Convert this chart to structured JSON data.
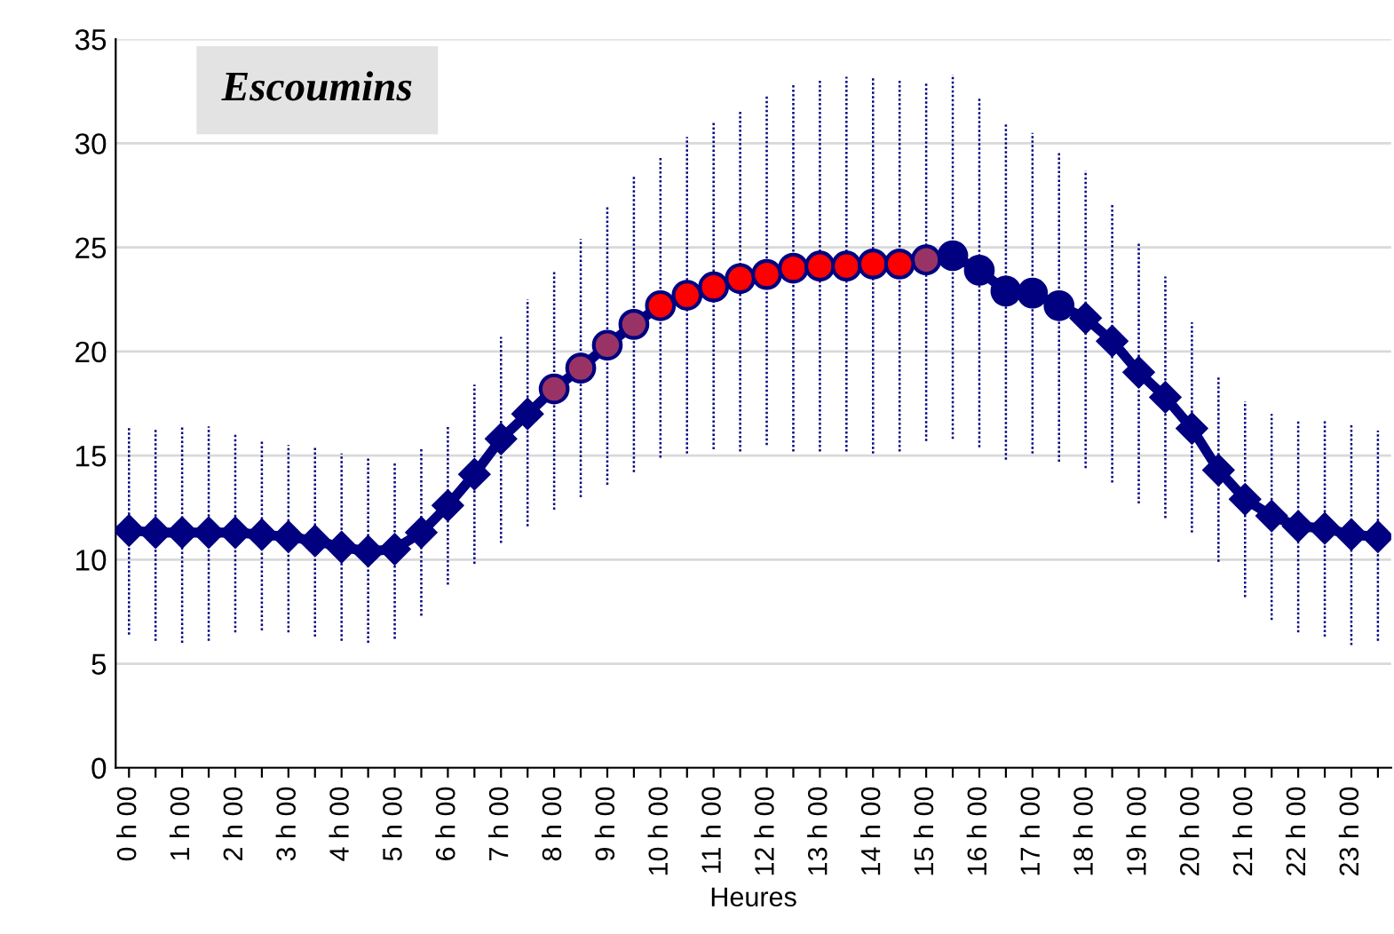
{
  "chart_data": {
    "type": "line",
    "title": "Escoumins",
    "xlabel": "Heures",
    "categories": [
      "0 h 00",
      null,
      "1 h 00",
      null,
      "2 h 00",
      null,
      "3 h 00",
      null,
      "4 h 00",
      null,
      "5 h 00",
      null,
      "6 h 00",
      null,
      "7 h 00",
      null,
      "8 h 00",
      null,
      "9 h 00",
      null,
      "10 h 00",
      null,
      "11 h 00",
      null,
      "12 h 00",
      null,
      "13 h 00",
      null,
      "14 h 00",
      null,
      "15 h 00",
      null,
      "16 h 00",
      null,
      "17 h 00",
      null,
      "18 h 00",
      null,
      "19 h 00",
      null,
      "20 h 00",
      null,
      "21 h 00",
      null,
      "22 h 00",
      null,
      "23 h 00",
      null
    ],
    "series": [
      {
        "color": "#000080",
        "marker": "none",
        "values": [
          11.4,
          11.3,
          11.3,
          11.3,
          11.3,
          11.2,
          11.1,
          10.9,
          10.6,
          10.4,
          10.5,
          11.3,
          12.6,
          14.1,
          15.8,
          17.0,
          18.2,
          19.2,
          20.3,
          21.3,
          22.2,
          22.7,
          23.1,
          23.5,
          23.7,
          24.0,
          24.1,
          24.1,
          24.2,
          24.2,
          24.4,
          24.6,
          23.9,
          22.9,
          22.8,
          22.2,
          21.6,
          20.5,
          19.0,
          17.8,
          16.3,
          14.3,
          12.9,
          12.1,
          11.6,
          11.5,
          11.2,
          11.1
        ],
        "errors": [
          [
            6.4,
            16.4
          ],
          [
            6.1,
            16.3
          ],
          [
            6.0,
            16.4
          ],
          [
            6.1,
            16.4
          ],
          [
            6.5,
            16.1
          ],
          [
            6.6,
            15.7
          ],
          [
            6.5,
            15.5
          ],
          [
            6.3,
            15.4
          ],
          [
            6.1,
            15.1
          ],
          [
            6.0,
            14.9
          ],
          [
            6.2,
            14.7
          ],
          [
            7.3,
            15.3
          ],
          [
            8.8,
            16.4
          ],
          [
            9.8,
            18.4
          ],
          [
            10.8,
            20.7
          ],
          [
            11.6,
            22.5
          ],
          [
            12.4,
            23.9
          ],
          [
            13.0,
            25.4
          ],
          [
            13.6,
            27.0
          ],
          [
            14.2,
            28.4
          ],
          [
            14.9,
            29.4
          ],
          [
            15.1,
            30.3
          ],
          [
            15.3,
            31.0
          ],
          [
            15.2,
            31.6
          ],
          [
            15.5,
            32.3
          ],
          [
            15.2,
            32.8
          ],
          [
            15.2,
            33.0
          ],
          [
            15.2,
            33.2
          ],
          [
            15.1,
            33.2
          ],
          [
            15.2,
            33.1
          ],
          [
            15.7,
            32.9
          ],
          [
            15.8,
            33.3
          ],
          [
            15.4,
            32.2
          ],
          [
            14.8,
            30.9
          ],
          [
            15.1,
            30.5
          ],
          [
            14.7,
            29.6
          ],
          [
            14.4,
            28.7
          ],
          [
            13.7,
            27.1
          ],
          [
            12.7,
            25.2
          ],
          [
            12.0,
            23.6
          ],
          [
            11.3,
            21.4
          ],
          [
            9.9,
            18.8
          ],
          [
            8.2,
            17.6
          ],
          [
            7.1,
            17.0
          ],
          [
            6.5,
            16.7
          ],
          [
            6.3,
            16.7
          ],
          [
            5.9,
            16.5
          ],
          [
            6.1,
            16.2
          ]
        ]
      },
      {
        "type": "scatter",
        "color": "#000080",
        "marker": "diamond",
        "values": [
          11.4,
          11.3,
          11.3,
          11.3,
          11.3,
          11.2,
          11.1,
          10.9,
          10.6,
          10.4,
          10.5,
          11.3,
          12.6,
          14.1,
          15.8,
          17.0,
          null,
          null,
          null,
          null,
          null,
          null,
          null,
          null,
          null,
          null,
          null,
          null,
          null,
          null,
          null,
          null,
          null,
          null,
          null,
          null,
          21.6,
          20.5,
          19.0,
          17.8,
          16.3,
          14.3,
          12.9,
          12.1,
          11.6,
          11.5,
          11.2,
          11.1
        ]
      },
      {
        "type": "scatter",
        "color": "#993366",
        "marker": "circle",
        "values": [
          null,
          null,
          null,
          null,
          null,
          null,
          null,
          null,
          null,
          null,
          null,
          null,
          null,
          null,
          null,
          null,
          18.2,
          19.2,
          20.3,
          21.3,
          null,
          null,
          null,
          null,
          null,
          null,
          null,
          null,
          null,
          null,
          24.4,
          null,
          null,
          null,
          null,
          null,
          null,
          null,
          null,
          null,
          null,
          null,
          null,
          null,
          null,
          null,
          null,
          null
        ]
      },
      {
        "type": "scatter",
        "color": "#ff0000",
        "marker": "circle",
        "values": [
          null,
          null,
          null,
          null,
          null,
          null,
          null,
          null,
          null,
          null,
          null,
          null,
          null,
          null,
          null,
          null,
          null,
          null,
          null,
          null,
          22.2,
          22.7,
          23.1,
          23.5,
          23.7,
          24.0,
          24.1,
          24.1,
          24.2,
          24.2,
          null,
          null,
          null,
          null,
          null,
          null,
          null,
          null,
          null,
          null,
          null,
          null,
          null,
          null,
          null,
          null,
          null,
          null
        ]
      },
      {
        "type": "scatter",
        "color": "#000080",
        "marker": "circle",
        "values": [
          null,
          null,
          null,
          null,
          null,
          null,
          null,
          null,
          null,
          null,
          null,
          null,
          null,
          null,
          null,
          null,
          null,
          null,
          null,
          null,
          null,
          null,
          null,
          null,
          null,
          null,
          null,
          null,
          null,
          null,
          null,
          24.6,
          23.9,
          22.9,
          22.8,
          22.2,
          null,
          null,
          null,
          null,
          null,
          null,
          null,
          null,
          null,
          null,
          null,
          null
        ]
      }
    ],
    "ylim": [
      0,
      35
    ],
    "yticks": [
      0,
      5,
      10,
      15,
      20,
      25,
      30,
      35
    ],
    "grid": "y"
  }
}
